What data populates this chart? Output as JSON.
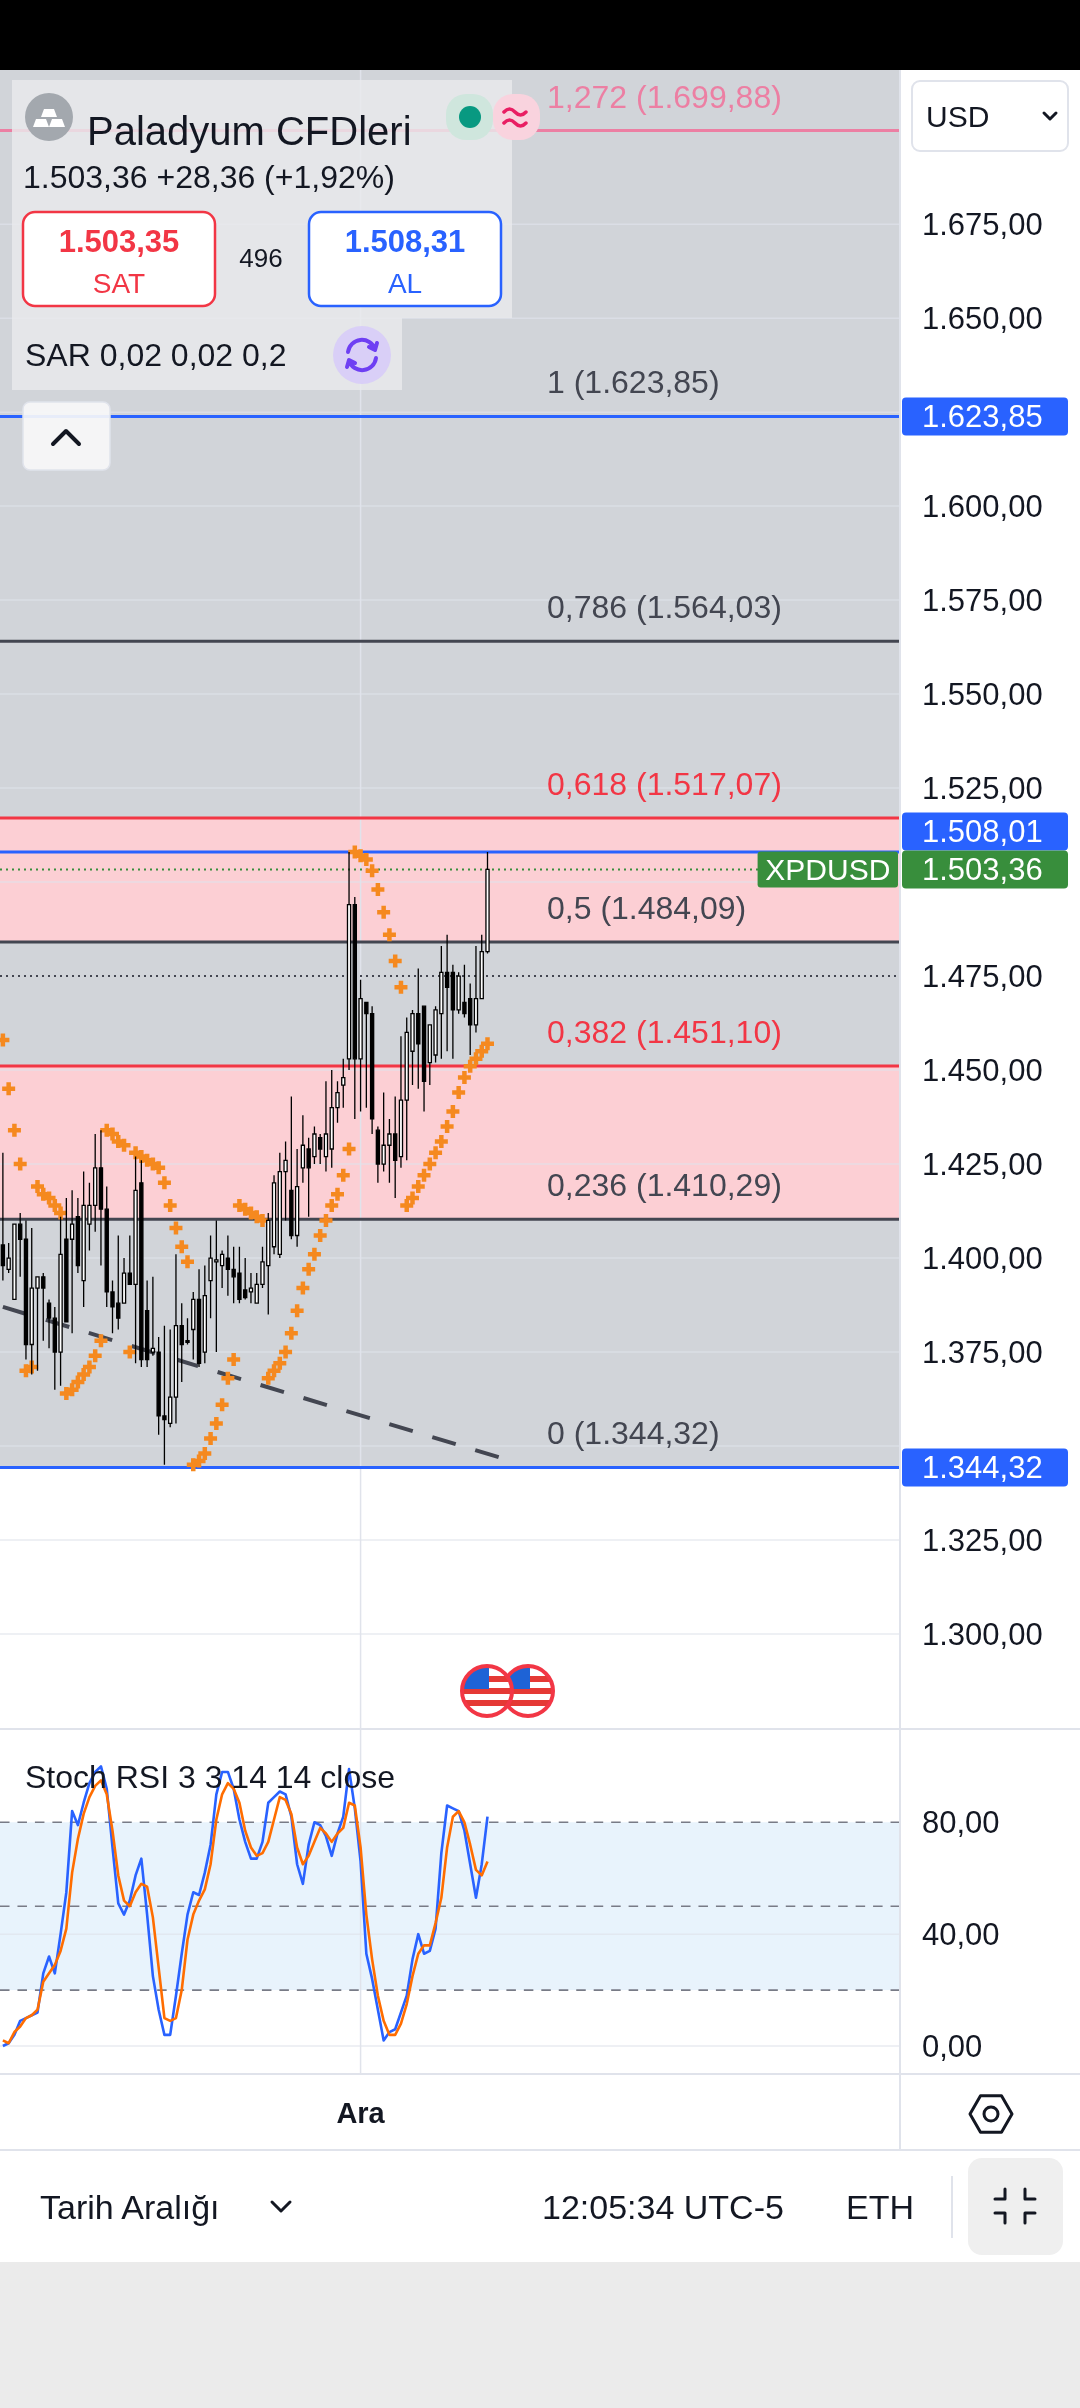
{
  "chart_data": [
    {
      "type": "candlestick",
      "title": "Paladyum CFDleri",
      "subtitle": "1.503,36 +28,36 (+1,92%)",
      "categories": [
        null,
        null,
        null,
        null,
        null,
        null,
        null,
        null,
        null,
        null,
        null,
        null,
        null,
        null,
        null,
        null,
        null,
        null,
        null,
        null,
        null,
        null,
        null,
        null,
        null,
        null,
        null,
        null,
        null,
        null,
        null,
        null,
        null,
        null,
        null,
        null,
        null,
        null,
        null,
        null,
        null,
        null,
        null,
        null,
        null,
        null,
        null,
        null,
        null,
        null,
        null,
        null,
        null,
        null,
        null,
        null,
        null,
        null,
        null,
        null,
        null,
        null,
        null,
        null,
        null,
        null,
        null,
        null,
        null,
        null,
        null,
        null,
        null,
        null,
        null,
        null,
        null,
        null,
        null,
        null,
        null,
        null,
        null,
        null,
        null,
        null,
        null,
        null,
        null,
        null,
        null,
        null,
        null,
        null,
        null,
        null,
        null,
        null,
        null,
        null,
        null,
        null,
        null,
        null,
        null,
        null,
        null,
        null,
        null,
        null,
        null,
        null,
        null,
        null,
        null,
        null,
        null,
        null,
        null,
        null,
        null,
        null,
        null,
        null,
        null,
        null,
        null,
        null,
        null,
        null,
        null,
        null,
        null,
        null,
        null,
        null,
        null,
        null,
        null,
        null,
        null,
        null,
        null,
        null,
        null,
        null,
        null,
        null,
        null,
        null,
        null,
        null,
        null,
        null,
        null,
        null
      ],
      "ohlc": [
        [
          1403.5,
          1428,
          1394,
          1398
        ],
        [
          1397,
          1404,
          1396,
          1400
        ],
        [
          1389,
          1409,
          1389,
          1409
        ],
        [
          1409,
          1412,
          1395,
          1405
        ],
        [
          1405,
          1410,
          1373,
          1377
        ],
        [
          1377,
          1408,
          1369,
          1392
        ],
        [
          1392,
          1395,
          1370,
          1395
        ],
        [
          1395,
          1396,
          1378,
          1392
        ],
        [
          1388,
          1389,
          1376,
          1384
        ],
        [
          1384,
          1387,
          1365,
          1375
        ],
        [
          1375,
          1411,
          1366,
          1401
        ],
        [
          1405,
          1416,
          1383,
          1383
        ],
        [
          1405,
          1418,
          1380,
          1409
        ],
        [
          1411,
          1416,
          1396,
          1398
        ],
        [
          1394,
          1423,
          1387,
          1414
        ],
        [
          1409,
          1420,
          1402,
          1414
        ],
        [
          1414,
          1433,
          1407,
          1424
        ],
        [
          1424,
          1434,
          1398,
          1413
        ],
        [
          1413,
          1419,
          1387,
          1391
        ],
        [
          1391,
          1394,
          1380,
          1387
        ],
        [
          1388,
          1406,
          1381,
          1384
        ],
        [
          1388,
          1400,
          1388,
          1396
        ],
        [
          1396,
          1406,
          1393,
          1393
        ],
        [
          1393,
          1427,
          1372,
          1418
        ],
        [
          1420,
          1426,
          1371,
          1373
        ],
        [
          1386,
          1394,
          1371,
          1373
        ],
        [
          1375,
          1395,
          1374,
          1376
        ],
        [
          1375,
          1379,
          1353,
          1358
        ],
        [
          1358,
          1382,
          1345,
          1357
        ],
        [
          1356,
          1381,
          1355,
          1363
        ],
        [
          1363,
          1401,
          1356,
          1382
        ],
        [
          1382,
          1388,
          1367,
          1377
        ],
        [
          1378,
          1384,
          1377,
          1378
        ],
        [
          1381,
          1391,
          1373,
          1389
        ],
        [
          1389,
          1397,
          1371,
          1372
        ],
        [
          1375,
          1398,
          1372,
          1390
        ],
        [
          1394,
          1406,
          1384,
          1400
        ],
        [
          1399,
          1410,
          1375,
          1399.5
        ],
        [
          1398,
          1402,
          1392,
          1401
        ],
        [
          1400,
          1406,
          1390,
          1397
        ],
        [
          1397,
          1403,
          1388,
          1395
        ],
        [
          1396,
          1403,
          1388,
          1389
        ],
        [
          1391.5,
          1400,
          1389,
          1389.5
        ],
        [
          1391,
          1396,
          1388,
          1392
        ],
        [
          1388,
          1396,
          1388,
          1393
        ],
        [
          1393,
          1403,
          1392,
          1399
        ],
        [
          1398,
          1412,
          1385,
          1410
        ],
        [
          1403,
          1422,
          1401,
          1420
        ],
        [
          1401,
          1428,
          1400,
          1423
        ],
        [
          1423,
          1431,
          1410,
          1426
        ],
        [
          1418,
          1443,
          1405,
          1406
        ],
        [
          1406,
          1429,
          1403,
          1419
        ],
        [
          1424,
          1438,
          1420,
          1430
        ],
        [
          1429,
          1432,
          1411,
          1424
        ],
        [
          1427,
          1435,
          1425,
          1433
        ],
        [
          1432,
          1433,
          1425,
          1429
        ],
        [
          1427,
          1447,
          1423,
          1433
        ],
        [
          1429,
          1450,
          1424,
          1440
        ],
        [
          1440,
          1447,
          1436,
          1444
        ],
        [
          1446,
          1453,
          1440,
          1448
        ],
        [
          1453,
          1508,
          1450,
          1494
        ],
        [
          1494,
          1496,
          1437,
          1453
        ],
        [
          1453,
          1474,
          1439,
          1469
        ],
        [
          1468,
          1468,
          1440,
          1465
        ],
        [
          1465,
          1467,
          1433,
          1437
        ],
        [
          1434,
          1435,
          1420,
          1425
        ],
        [
          1425,
          1444,
          1423,
          1430
        ],
        [
          1430,
          1437,
          1420,
          1433
        ],
        [
          1433,
          1443,
          1416,
          1426
        ],
        [
          1427,
          1459,
          1424,
          1442
        ],
        [
          1442,
          1464,
          1426,
          1460
        ],
        [
          1455,
          1466,
          1446,
          1465
        ],
        [
          1465,
          1477,
          1445,
          1457
        ],
        [
          1467,
          1467,
          1439,
          1447
        ],
        [
          1452,
          1462,
          1446,
          1462
        ],
        [
          1454,
          1467,
          1452,
          1466
        ],
        [
          1465,
          1483,
          1453,
          1476
        ],
        [
          1476,
          1486,
          1455,
          1472
        ],
        [
          1476,
          1478,
          1453,
          1466
        ],
        [
          1466,
          1476,
          1465,
          1475
        ],
        [
          1468,
          1478,
          1464,
          1465
        ],
        [
          1469,
          1473,
          1454,
          1462
        ],
        [
          1462,
          1483,
          1460,
          1469
        ],
        [
          1469,
          1486,
          1469,
          1481.5
        ],
        [
          1481.5,
          1508,
          1481,
          1503.36
        ],
        null,
        null,
        null,
        null,
        null,
        null,
        null,
        null,
        null,
        null,
        null,
        null,
        null,
        null,
        null,
        null,
        null,
        null,
        null,
        null,
        null,
        null,
        null,
        null,
        null,
        null,
        null,
        null,
        null,
        null,
        null,
        null,
        null,
        null,
        null,
        null,
        null,
        null,
        null,
        null,
        null,
        null,
        null,
        null,
        null,
        null,
        null,
        null,
        null,
        null,
        null,
        null,
        null,
        null,
        null,
        null,
        null,
        null,
        null,
        null,
        null,
        null,
        null,
        null,
        null,
        null,
        null,
        null,
        null,
        null,
        null
      ],
      "color": "#000000",
      "series": [
        {
          "type": "scatter",
          "color": "#f5891f",
          "marker": "cross",
          "values": [
            1458,
            1445,
            1434,
            1425,
            1370,
            1371,
            1419,
            1417,
            1416,
            1414,
            1412,
            1364,
            1365,
            1367,
            1369,
            1371,
            1374,
            1378,
            1434,
            1433,
            1431,
            1430,
            1375,
            1428,
            1427,
            1426,
            1425,
            1424,
            1420,
            1414,
            1408,
            1403,
            1399,
            1345,
            1346,
            1348,
            1352,
            1356,
            1361,
            1368,
            1373,
            1414,
            1413,
            1412,
            1411,
            1410,
            1368,
            1370,
            1372,
            1375,
            1380,
            1386,
            1392,
            1397,
            1401,
            1406,
            1410,
            1414,
            1417,
            1422,
            1429,
            1508,
            1507,
            1506,
            1503,
            1498,
            1492,
            1486,
            1479,
            1472,
            1414,
            1416,
            1419,
            1422,
            1425,
            1428,
            1431,
            1435,
            1439,
            1444,
            1448,
            1451,
            1453,
            1455,
            1457,
            null,
            null,
            null,
            null,
            null,
            null,
            null,
            null,
            null,
            null,
            null,
            null,
            null,
            null,
            null,
            null,
            null,
            null,
            null,
            null,
            null,
            null,
            null,
            null,
            null,
            null,
            null,
            null,
            null,
            null,
            null,
            null,
            null,
            null,
            null,
            null,
            null,
            null,
            null,
            null,
            null,
            null,
            null,
            null,
            null,
            null,
            null,
            null,
            null,
            null,
            null,
            null,
            null,
            null,
            null,
            null,
            null,
            null,
            null,
            null,
            null,
            null,
            null,
            null,
            null,
            null,
            null,
            null,
            null,
            null,
            null
          ]
        },
        {
          "type": "line",
          "color": "#434651",
          "line_style": "dashed",
          "values": [
            1387,
            null,
            null,
            null,
            null,
            null,
            null,
            null,
            null,
            null,
            null,
            null,
            null,
            null,
            null,
            null,
            null,
            null,
            null,
            null,
            null,
            null,
            null,
            null,
            null,
            null,
            null,
            null,
            null,
            null,
            null,
            null,
            null,
            null,
            null,
            null,
            null,
            null,
            null,
            null,
            null,
            null,
            null,
            null,
            null,
            null,
            null,
            null,
            null,
            null,
            null,
            null,
            null,
            null,
            null,
            null,
            null,
            null,
            null,
            null,
            null,
            null,
            null,
            null,
            null,
            null,
            null,
            null,
            null,
            null,
            null,
            null,
            null,
            null,
            null,
            null,
            null,
            null,
            null,
            null,
            null,
            null,
            null,
            null,
            null,
            null,
            1347,
            null,
            null,
            null,
            null,
            null,
            null,
            null,
            null,
            null,
            null,
            null,
            null,
            null,
            null,
            null,
            null,
            null,
            null,
            null,
            null,
            null,
            null,
            null,
            null,
            null,
            null,
            null,
            null,
            null,
            null,
            null,
            null,
            null,
            null,
            null,
            null,
            null,
            null,
            null,
            null,
            null,
            null,
            null,
            null,
            null,
            null,
            null,
            null,
            null,
            null,
            null,
            null,
            null,
            null,
            null,
            null,
            null,
            null,
            null,
            null,
            null,
            null,
            null,
            null,
            null,
            null,
            null,
            null,
            null
          ]
        }
      ],
      "ylim": [
        1275,
        1716
      ],
      "yticks": [
        {
          "value": 1300,
          "label": "1.300,00"
        },
        {
          "value": 1325,
          "label": "1.325,00"
        },
        {
          "value": 1350,
          "label": null
        },
        {
          "value": 1375,
          "label": "1.375,00"
        },
        {
          "value": 1400,
          "label": "1.400,00"
        },
        {
          "value": 1425,
          "label": "1.425,00"
        },
        {
          "value": 1450,
          "label": "1.450,00"
        },
        {
          "value": 1475,
          "label": "1.475,00"
        },
        {
          "value": 1500,
          "label": null
        },
        {
          "value": 1525,
          "label": "1.525,00"
        },
        {
          "value": 1550,
          "label": "1.550,00"
        },
        {
          "value": 1575,
          "label": "1.575,00"
        },
        {
          "value": 1600,
          "label": "1.600,00"
        },
        {
          "value": 1625,
          "label": null
        },
        {
          "value": 1650,
          "label": "1.650,00"
        },
        {
          "value": 1675,
          "label": "1.675,00"
        }
      ],
      "grid": true,
      "tick_labels": "y",
      "ref_lines": [
        {
          "axis": "y",
          "value": 1699.88,
          "color": "#ec7fa3"
        },
        {
          "axis": "y",
          "value": 1623.85,
          "color": "#2962ff",
          "label": "1.623,85"
        },
        {
          "axis": "y",
          "value": 1564.03,
          "color": "#434651"
        },
        {
          "axis": "y",
          "value": 1517.07,
          "color": "#f23645"
        },
        {
          "axis": "y",
          "value": 1508.01,
          "color": "#2962ff",
          "label": "1.508,01"
        },
        {
          "axis": "y",
          "value": 1503.36,
          "color": "#388e3c",
          "line_style": "dotted",
          "label": "1.503,36"
        },
        {
          "axis": "y",
          "value": 1484.09,
          "color": "#434651"
        },
        {
          "axis": "y",
          "value": 1475,
          "color": "#434651",
          "line_style": "dotted"
        },
        {
          "axis": "y",
          "value": 1451.1,
          "color": "#f23645"
        },
        {
          "axis": "y",
          "value": 1410.29,
          "color": "#434651"
        },
        {
          "axis": "y",
          "value": 1344.32,
          "color": "#2962ff",
          "label": "1.344,32"
        }
      ],
      "bands": [
        {
          "axis": "y",
          "from": 1344.32,
          "to": 1716,
          "color": "#d1d4d9"
        },
        {
          "axis": "y",
          "from": 1410.29,
          "to": 1451.1,
          "color": "#fccfd4"
        },
        {
          "axis": "y",
          "from": 1484.09,
          "to": 1517.07,
          "color": "#fccfd4"
        }
      ],
      "annotations": [
        "1.503,35",
        "SAT",
        "496",
        "1.508,31",
        "AL",
        "SAR 0,02 0,02 0,2",
        "USD",
        "Tarih Aralığı",
        "12:05:34 UTC-5",
        "ETH",
        {
          "text": "1,272 (1.699,88)",
          "y": 1699.88
        },
        {
          "text": "1 (1.623,85)",
          "y": 1623.85
        },
        {
          "text": "0,786 (1.564,03)",
          "y": 1564.03
        },
        {
          "text": "0,618 (1.517,07)",
          "y": 1517.07
        },
        {
          "text": "XPDUSD",
          "y": 1503.36
        },
        {
          "text": "0,5 (1.484,09)",
          "y": 1484.09
        },
        {
          "text": "0,382 (1.451,10)",
          "y": 1451.1
        },
        {
          "text": "0,236 (1.410,29)",
          "y": 1410.29
        },
        {
          "text": "0 (1.344,32)",
          "y": 1344.32
        }
      ]
    },
    {
      "type": "line",
      "title": "Stoch RSI 3 3 14 14 close",
      "categories": [
        null,
        null,
        null,
        null,
        null,
        null,
        null,
        null,
        null,
        null,
        null,
        null,
        null,
        null,
        null,
        null,
        null,
        null,
        null,
        null,
        null,
        null,
        null,
        null,
        null,
        null,
        null,
        null,
        null,
        null,
        null,
        null,
        null,
        null,
        null,
        null,
        null,
        null,
        null,
        null,
        null,
        null,
        null,
        null,
        null,
        null,
        null,
        null,
        null,
        null,
        null,
        null,
        null,
        null,
        null,
        null,
        null,
        null,
        null,
        null,
        null,
        null,
        "Ara",
        null,
        null,
        null,
        null,
        null,
        null,
        null,
        null,
        null,
        null,
        null,
        null,
        null,
        null,
        null,
        null,
        null,
        null,
        null,
        null,
        null,
        null,
        null,
        null,
        null,
        null,
        null,
        null,
        null,
        null,
        null,
        null,
        null,
        null,
        null,
        null,
        null,
        null,
        null,
        null,
        null,
        null,
        null,
        null,
        null,
        null,
        null,
        null,
        null,
        null,
        null,
        null,
        null,
        null,
        null,
        null,
        null,
        null,
        null,
        null,
        null,
        null,
        null,
        null,
        null,
        null,
        null,
        null,
        null,
        null,
        null,
        null,
        null,
        null,
        null,
        null,
        null,
        null,
        null,
        null,
        null,
        null,
        null,
        null,
        null,
        null,
        null,
        null,
        null,
        null,
        null,
        null,
        null
      ],
      "series": [
        {
          "color": "#2962ff",
          "values": [
            0,
            1,
            4,
            9,
            10,
            11,
            12,
            26,
            32,
            26,
            40,
            55,
            84,
            79,
            87,
            94,
            98,
            100,
            92,
            71,
            51,
            47,
            52,
            61,
            67,
            47,
            25,
            13,
            4,
            4,
            18,
            33,
            47,
            55,
            54,
            62,
            72,
            90,
            98,
            98,
            92,
            81,
            73,
            67,
            67,
            73,
            87,
            89,
            91,
            90,
            82,
            65,
            58,
            72,
            80,
            79,
            75,
            68,
            76,
            82,
            99,
            85,
            66,
            33,
            24,
            13,
            2,
            5,
            6,
            12,
            18,
            31,
            40,
            33,
            34,
            42,
            69,
            86,
            85,
            84,
            77,
            65,
            53,
            65,
            82,
            null,
            null,
            null,
            null,
            null,
            null,
            null,
            null,
            null,
            null,
            null,
            null,
            null,
            null,
            null,
            null,
            null,
            null,
            null,
            null,
            null,
            null,
            null,
            null,
            null,
            null,
            null,
            null,
            null,
            null,
            null,
            null,
            null,
            null,
            null,
            null,
            null,
            null,
            null,
            null,
            null,
            null,
            null,
            null,
            null,
            null,
            null,
            null,
            null,
            null,
            null,
            null,
            null,
            null,
            null,
            null,
            null,
            null,
            null,
            null,
            null,
            null,
            null,
            null,
            null,
            null,
            null,
            null,
            null,
            null,
            null
          ]
        },
        {
          "color": "#ff6d00",
          "values": [
            2,
            1,
            5,
            7,
            10,
            11,
            13,
            23,
            26,
            29,
            34,
            42,
            62,
            74,
            83,
            89,
            93,
            95,
            90,
            77,
            61,
            52,
            50,
            55,
            58,
            57,
            46,
            28,
            10,
            9,
            10,
            20,
            38,
            47,
            52,
            56,
            65,
            81,
            90,
            94,
            92,
            87,
            77,
            71,
            68,
            69,
            73,
            81,
            89,
            88,
            83,
            71,
            65,
            68,
            73,
            78,
            76,
            73,
            76,
            78,
            87,
            86,
            71,
            47,
            31,
            18,
            9,
            4,
            4,
            8,
            15,
            25,
            33,
            36,
            36,
            44,
            53,
            71,
            82,
            84,
            80,
            72,
            63,
            61,
            66,
            null,
            null,
            null,
            null,
            null,
            null,
            null,
            null,
            null,
            null,
            null,
            null,
            null,
            null,
            null,
            null,
            null,
            null,
            null,
            null,
            null,
            null,
            null,
            null,
            null,
            null,
            null,
            null,
            null,
            null,
            null,
            null,
            null,
            null,
            null,
            null,
            null,
            null,
            null,
            null,
            null,
            null,
            null,
            null,
            null,
            null,
            null,
            null,
            null,
            null,
            null,
            null,
            null,
            null,
            null,
            null,
            null,
            null,
            null,
            null,
            null,
            null,
            null,
            null,
            null,
            null,
            null,
            null,
            null,
            null,
            null
          ]
        }
      ],
      "ylim": [
        -10,
        113
      ],
      "yticks": [
        {
          "value": 0,
          "label": "0,00"
        },
        {
          "value": 40,
          "label": "40,00"
        },
        {
          "value": 80,
          "label": "80,00"
        }
      ],
      "grid": true,
      "ref_lines": [
        {
          "axis": "y",
          "value": 80,
          "color": "#787b86",
          "line_style": "dashed"
        },
        {
          "axis": "y",
          "value": 50,
          "color": "#787b86",
          "line_style": "dashed"
        },
        {
          "axis": "y",
          "value": 20,
          "color": "#787b86",
          "line_style": "dashed"
        }
      ],
      "bands": [
        {
          "axis": "y",
          "from": 20,
          "to": 80,
          "color": "#e8f3fc"
        }
      ]
    }
  ]
}
